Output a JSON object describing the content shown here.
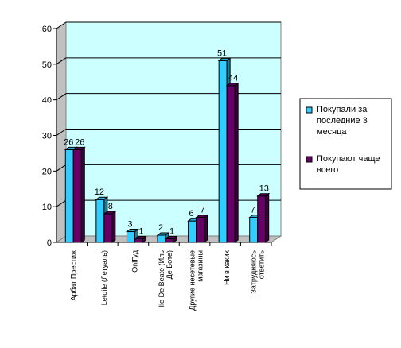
{
  "chart_data": {
    "type": "bar",
    "title": "",
    "xlabel": "",
    "ylabel": "",
    "ylim": [
      0,
      60
    ],
    "yticks": [
      0,
      10,
      20,
      30,
      40,
      50,
      60
    ],
    "grid": true,
    "legend_position": "right",
    "categories": [
      [
        "Арбат Престиж"
      ],
      [
        "Letoile (Летуаль)"
      ],
      [
        "OnlГуд"
      ],
      [
        "Ile De Beate (Иль",
        "Де Боте)"
      ],
      [
        "Другие несетевые",
        "магазины"
      ],
      [
        "Ни в каких"
      ],
      [
        "Затрудняюсь",
        "ответить"
      ]
    ],
    "series": [
      {
        "name": "Покупали за последние 3 месяца",
        "legend_lines": [
          "Покупали за",
          "последние 3",
          "месяца"
        ],
        "color": "#33ccff",
        "values": [
          26,
          12,
          3,
          2,
          6,
          51,
          7
        ]
      },
      {
        "name": "Покупают чаще всего",
        "legend_lines": [
          "Покупают чаще",
          "всего"
        ],
        "color": "#660066",
        "values": [
          26,
          8,
          1,
          1,
          7,
          44,
          13
        ]
      }
    ],
    "colors": {
      "plot_wall": "#ccffff",
      "plot_border": "#808080",
      "grid": "#000000",
      "floor": "#c0c0c0"
    }
  }
}
